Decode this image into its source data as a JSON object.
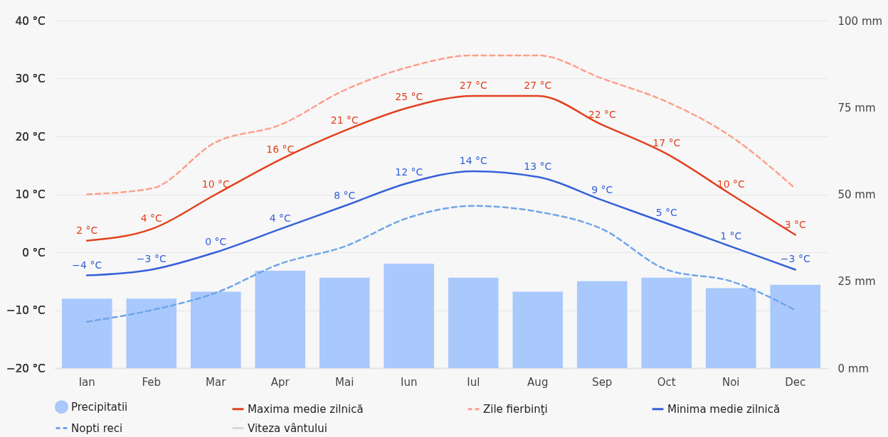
{
  "chart_data": {
    "type": "line",
    "categories": [
      "Ian",
      "Feb",
      "Mar",
      "Apr",
      "Mai",
      "Iun",
      "Iul",
      "Aug",
      "Sep",
      "Oct",
      "Noi",
      "Dec"
    ],
    "series": [
      {
        "name": "Precipitatii",
        "type": "bar",
        "axis": "y2",
        "color": "#a9c8fc",
        "values": [
          20,
          20,
          22,
          28,
          26,
          30,
          26,
          22,
          25,
          26,
          23,
          24
        ]
      },
      {
        "name": "Maxima medie zilnică",
        "color": "#e2401e",
        "line_style": "solid",
        "values": [
          2,
          4,
          10,
          16,
          21,
          25,
          27,
          27,
          22,
          17,
          10,
          3
        ],
        "value_labels": [
          "2 °C",
          "4 °C",
          "10 °C",
          "16 °C",
          "21 °C",
          "25 °C",
          "27 °C",
          "27 °C",
          "22 °C",
          "17 °C",
          "10 °C",
          "3 °C"
        ]
      },
      {
        "name": "Zile fierbinţi",
        "color": "#fca08c",
        "line_style": "dashed",
        "values": [
          10,
          11,
          19,
          22,
          28,
          32,
          34,
          34,
          30,
          26,
          20,
          11
        ]
      },
      {
        "name": "Minima medie zilnică",
        "color": "#3560d8",
        "line_style": "solid",
        "values": [
          -4,
          -3,
          0,
          4,
          8,
          12,
          14,
          13,
          9,
          5,
          1,
          -3
        ],
        "value_labels": [
          "−4 °C",
          "−3 °C",
          "0 °C",
          "4 °C",
          "8 °C",
          "12 °C",
          "14 °C",
          "13 °C",
          "9 °C",
          "5 °C",
          "1 °C",
          "−3 °C"
        ]
      },
      {
        "name": "Nopti reci",
        "color": "#6fa6e8",
        "line_style": "dashed",
        "values": [
          -12,
          -10,
          -7,
          -2,
          1,
          6,
          8,
          7,
          4,
          -3,
          -5,
          -10
        ]
      },
      {
        "name": "Viteza vântului",
        "color": "#d8d8d8",
        "line_style": "solid",
        "values": [
          null,
          null,
          null,
          null,
          null,
          null,
          null,
          null,
          null,
          null,
          null,
          null
        ]
      }
    ],
    "ylim": [
      -20,
      40
    ],
    "yticks": [
      {
        "value": -20,
        "label": "−20 °C"
      },
      {
        "value": -10,
        "label": "−10 °C"
      },
      {
        "value": 0,
        "label": "0 °C"
      },
      {
        "value": 10,
        "label": "10 °C"
      },
      {
        "value": 20,
        "label": "20 °C"
      },
      {
        "value": 30,
        "label": "30 °C"
      },
      {
        "value": 40,
        "label": "40 °C"
      }
    ],
    "y2lim": [
      0,
      100
    ],
    "y2ticks": [
      {
        "value": 0,
        "label": "0 mm"
      },
      {
        "value": 25,
        "label": "25 mm"
      },
      {
        "value": 50,
        "label": "50 mm"
      },
      {
        "value": 75,
        "label": "75 mm"
      },
      {
        "value": 100,
        "label": "100 mm"
      }
    ],
    "grid": "y",
    "legend": "bottom"
  }
}
